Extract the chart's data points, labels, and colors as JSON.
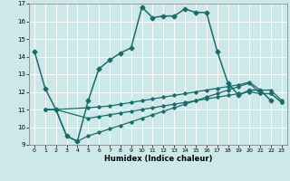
{
  "xlabel": "Humidex (Indice chaleur)",
  "xlim": [
    -0.5,
    23.5
  ],
  "ylim": [
    9,
    17
  ],
  "yticks": [
    9,
    10,
    11,
    12,
    13,
    14,
    15,
    16,
    17
  ],
  "xticks": [
    0,
    1,
    2,
    3,
    4,
    5,
    6,
    7,
    8,
    9,
    10,
    11,
    12,
    13,
    14,
    15,
    16,
    17,
    18,
    19,
    20,
    21,
    22,
    23
  ],
  "bg_color": "#cde8e8",
  "line_color": "#1a6b6b",
  "grid_color": "#b8d8d8",
  "series1_x": [
    0,
    1,
    2,
    3,
    4,
    5,
    6,
    7,
    8,
    9,
    10,
    11,
    12,
    13,
    14,
    15,
    16,
    17,
    18,
    19,
    20,
    21,
    22
  ],
  "series1_y": [
    14.3,
    12.2,
    11.0,
    9.5,
    9.2,
    11.5,
    13.3,
    13.8,
    14.2,
    14.5,
    16.8,
    16.2,
    16.3,
    16.3,
    16.7,
    16.5,
    16.5,
    14.3,
    12.5,
    11.8,
    12.1,
    12.1,
    11.5
  ],
  "series2_x": [
    1,
    2,
    5,
    6,
    7,
    8,
    9,
    10,
    11,
    12,
    13,
    14,
    15,
    16,
    17,
    18,
    19,
    20,
    21,
    22,
    23
  ],
  "series2_y": [
    11.0,
    11.0,
    11.1,
    11.15,
    11.2,
    11.3,
    11.4,
    11.5,
    11.6,
    11.7,
    11.8,
    11.9,
    12.0,
    12.1,
    12.2,
    12.3,
    12.4,
    12.55,
    12.1,
    12.1,
    11.5
  ],
  "series3_x": [
    1,
    2,
    5,
    6,
    7,
    8,
    9,
    10,
    11,
    12,
    13,
    14,
    15,
    16,
    17,
    18,
    19,
    20,
    21,
    22,
    23
  ],
  "series3_y": [
    11.0,
    11.0,
    10.5,
    10.6,
    10.7,
    10.8,
    10.9,
    11.0,
    11.1,
    11.2,
    11.3,
    11.4,
    11.5,
    11.6,
    11.7,
    11.8,
    11.9,
    12.0,
    11.9,
    11.9,
    11.4
  ],
  "series4_x": [
    1,
    2,
    3,
    4,
    5,
    6,
    7,
    8,
    9,
    10,
    11,
    12,
    13,
    14,
    15,
    16,
    17,
    18,
    19,
    20,
    21,
    22,
    23
  ],
  "series4_y": [
    11.0,
    11.0,
    9.5,
    9.2,
    9.5,
    9.7,
    9.9,
    10.1,
    10.3,
    10.5,
    10.7,
    10.9,
    11.1,
    11.3,
    11.5,
    11.7,
    11.9,
    12.1,
    12.3,
    12.5,
    11.9,
    11.9,
    11.4
  ]
}
